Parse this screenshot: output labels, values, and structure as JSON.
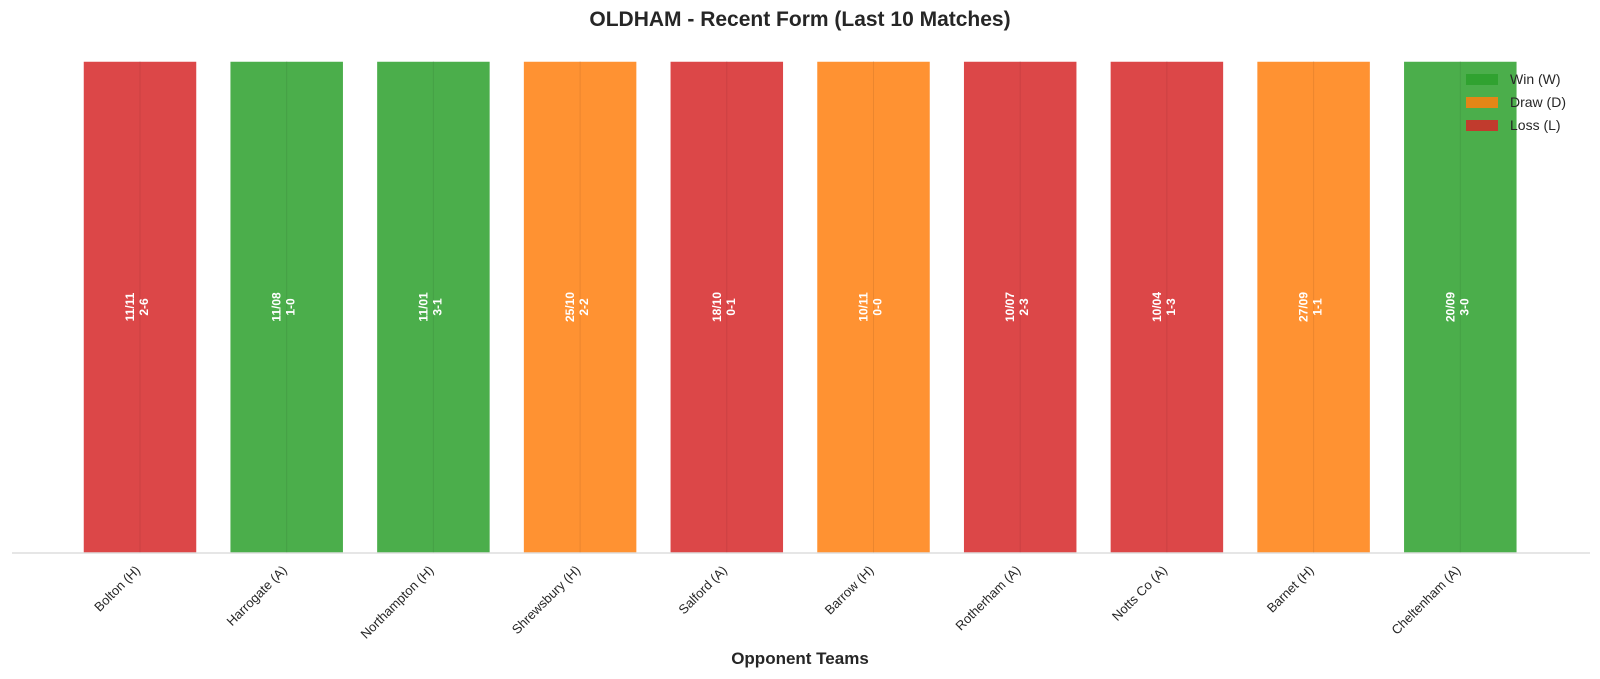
{
  "chart_data": {
    "type": "bar",
    "title": "OLDHAM - Recent Form (Last 10 Matches)",
    "xlabel": "Opponent Teams",
    "ylabel": "",
    "grid": false,
    "legend_position": "top-right",
    "categories": [
      "Bolton (H)",
      "Harrogate (A)",
      "Northampton (H)",
      "Shrewsbury (H)",
      "Salford (A)",
      "Barrow (H)",
      "Rotherham (A)",
      "Notts Co (A)",
      "Barnet (H)",
      "Cheltenham (A)"
    ],
    "values": [
      1,
      1,
      1,
      1,
      1,
      1,
      1,
      1,
      1,
      1
    ],
    "results": [
      "L",
      "W",
      "W",
      "D",
      "L",
      "D",
      "L",
      "L",
      "D",
      "W"
    ],
    "dates": [
      "11/11",
      "11/08",
      "11/01",
      "25/10",
      "18/10",
      "10/11",
      "10/07",
      "10/04",
      "27/09",
      "20/09"
    ],
    "scores": [
      "2-6",
      "1-0",
      "3-1",
      "2-2",
      "0-1",
      "0-0",
      "2-3",
      "1-3",
      "1-1",
      "3-0"
    ],
    "legend": [
      {
        "key": "W",
        "label": "Win (W)",
        "color": "#2ca02c"
      },
      {
        "key": "D",
        "label": "Draw (D)",
        "color": "#ff7f0e"
      },
      {
        "key": "L",
        "label": "Loss (L)",
        "color": "#d62728"
      }
    ]
  }
}
